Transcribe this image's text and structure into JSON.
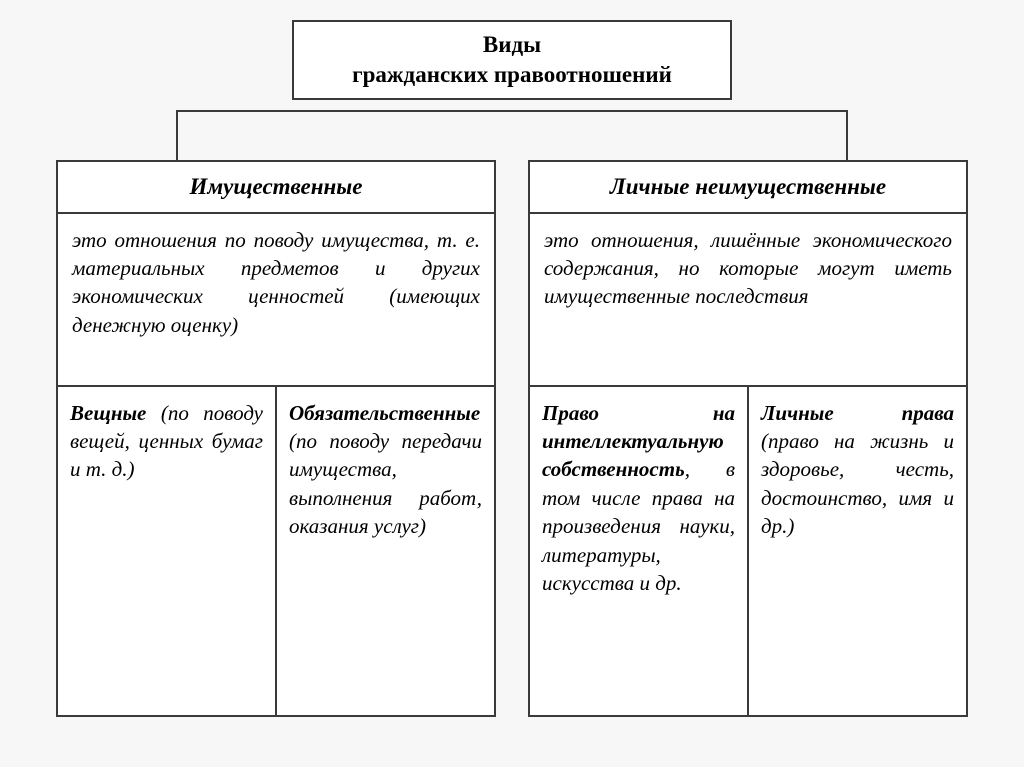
{
  "diagram": {
    "type": "tree",
    "title_line1": "Виды",
    "title_line2": "гражданских правоотношений",
    "colors": {
      "border": "#3a3a3a",
      "background": "#ffffff",
      "page_bg": "#f7f7f7",
      "text": "#2a2a2a"
    },
    "typography": {
      "title_fontsize_pt": 17,
      "body_fontsize_pt": 16,
      "font_family": "serif",
      "style": "italic"
    },
    "branches": [
      {
        "heading": "Имущественные",
        "definition": "это отношения по поводу имущества, т. е. материальных предметов и других экономических ценностей (имеющих денежную оценку)",
        "subs": [
          {
            "bold": "Вещные",
            "rest": " (по поводу вещей, ценных бумаг и т. д.)"
          },
          {
            "bold": "Обязательственные",
            "rest": " (по поводу передачи имущества, выполнения работ, оказания услуг)"
          }
        ]
      },
      {
        "heading": "Личные неимущественные",
        "definition": "это отношения, лишённые экономического содержания, но которые могут иметь имущественные последствия",
        "subs": [
          {
            "bold": "Право на интеллектуальную собственность",
            "rest": ", в том числе права на произведения науки, литературы, искусства и др."
          },
          {
            "bold": "Личные права",
            "rest": " (право на жизнь и здоровье, честь, достоинство, имя и др.)"
          }
        ]
      }
    ]
  }
}
